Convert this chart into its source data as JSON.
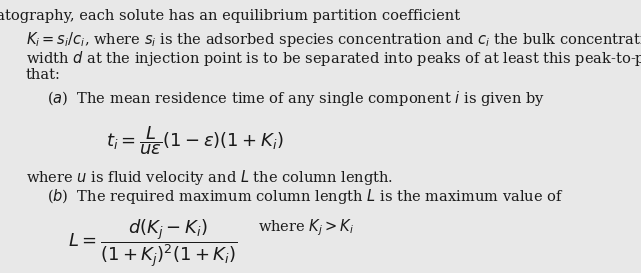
{
  "background_color": "#e8e8e8",
  "text_color": "#1a1a1a",
  "intro_line1": "In chromatography, each solute has an equilibrium partition coefficient",
  "intro_line2_left": "$K_i = s_i/c_i$, where $s_i$ is the adsorbed species concentration and $c_i$ the bulk concentration. If a sample of",
  "intro_line3": "width $d$ at the injection point is to be separated into peaks of at least this peak-to-peak spacing, show",
  "intro_line4": "that:",
  "part_a_label": "($a$)  The mean residence time of any single component $i$ is given by",
  "formula_a_num": "$L$",
  "formula_a": "$t_i = \\dfrac{L}{u\\varepsilon}(1 - \\varepsilon)(1 + K_i)$",
  "where_a": "where $u$ is fluid velocity and $L$ the column length.",
  "part_b_label": "($b$)  The required maximum column length $L$ is the maximum value of",
  "formula_b": "$L = \\dfrac{d(K_j - K_i)}{(1 + K_j)^2(1 + K_i)}$",
  "where_b": "where $K_j > K_i$",
  "fontsize_body": 10.5,
  "fontsize_formula": 12
}
